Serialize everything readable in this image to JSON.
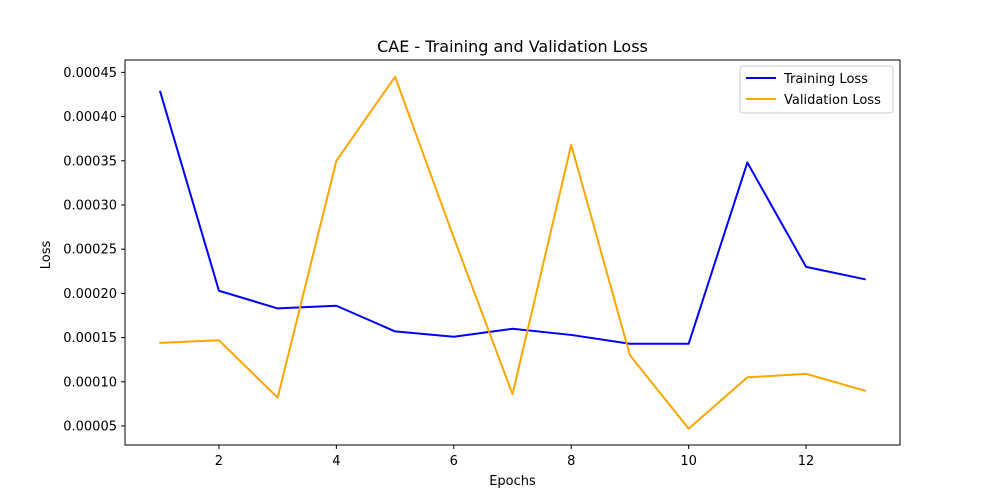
{
  "chart_data": {
    "type": "line",
    "title": "CAE - Training and Validation Loss",
    "xlabel": "Epochs",
    "ylabel": "Loss",
    "x": [
      1,
      2,
      3,
      4,
      5,
      6,
      7,
      8,
      9,
      10,
      11,
      12,
      13
    ],
    "xlim": [
      0.4,
      13.6
    ],
    "ylim": [
      2.85e-05,
      0.000464
    ],
    "x_ticks": [
      2,
      4,
      6,
      8,
      10,
      12
    ],
    "x_tick_labels": [
      "2",
      "4",
      "6",
      "8",
      "10",
      "12"
    ],
    "y_ticks": [
      5e-05,
      0.0001,
      0.00015,
      0.0002,
      0.00025,
      0.0003,
      0.00035,
      0.0004,
      0.00045
    ],
    "y_tick_labels": [
      "0.00005",
      "0.00010",
      "0.00015",
      "0.00020",
      "0.00025",
      "0.00030",
      "0.00035",
      "0.00040",
      "0.00045"
    ],
    "grid": false,
    "legend_position": "top-right",
    "series": [
      {
        "name": "Training Loss",
        "color": "#0000ff",
        "values": [
          0.000428,
          0.000203,
          0.000183,
          0.000186,
          0.000157,
          0.000151,
          0.00016,
          0.000153,
          0.000143,
          0.000143,
          0.000348,
          0.00023,
          0.000216
        ]
      },
      {
        "name": "Validation Loss",
        "color": "#ffa500",
        "values": [
          0.000144,
          0.000147,
          8.2e-05,
          0.00035,
          0.000445,
          0.000263,
          8.6e-05,
          0.000368,
          0.00013,
          4.7e-05,
          0.000105,
          0.000109,
          9e-05
        ]
      }
    ]
  }
}
